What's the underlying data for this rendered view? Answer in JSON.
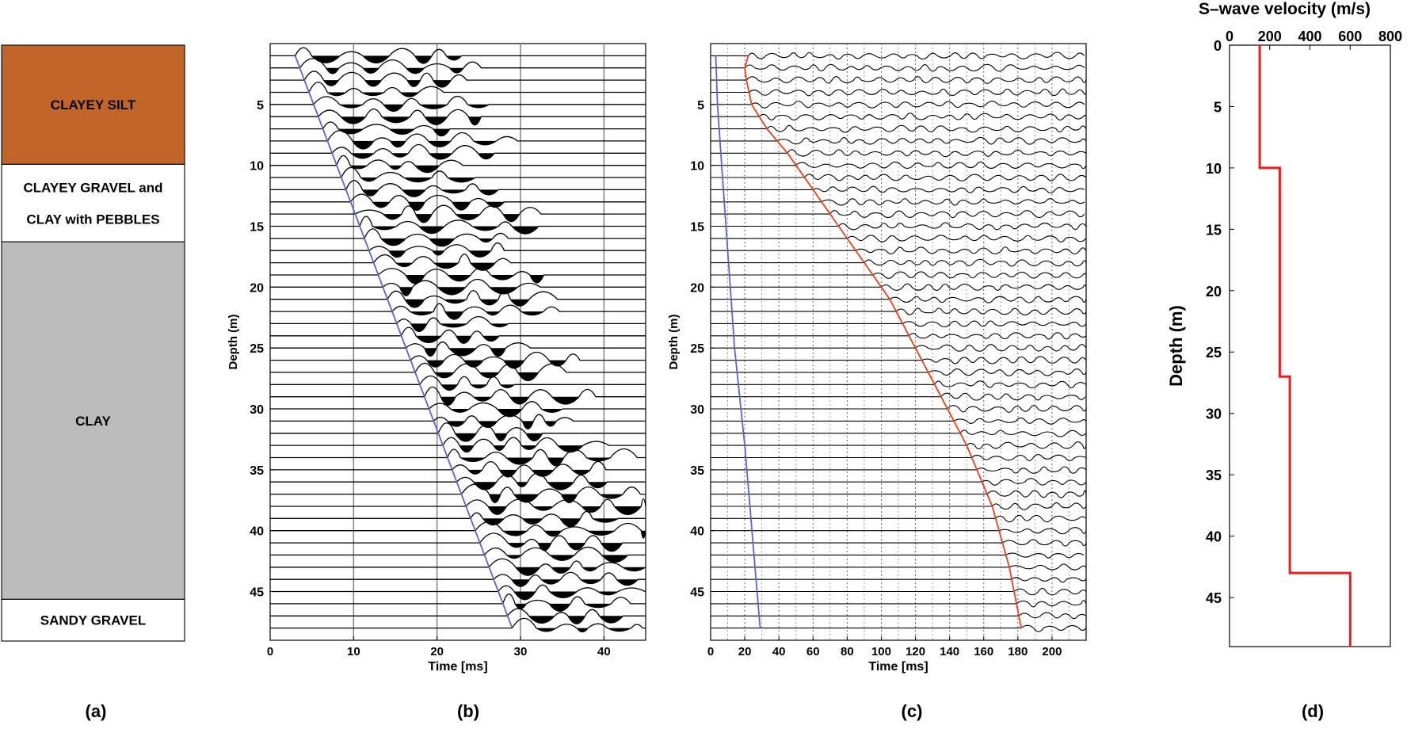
{
  "panel_labels": [
    "(a)",
    "(b)",
    "(c)",
    "(d)"
  ],
  "strata": [
    {
      "lines": [
        "CLAYEY SILT"
      ],
      "top": 0,
      "bottom": 10,
      "color": "#c2652a"
    },
    {
      "lines": [
        "CLAYEY GRAVEL and",
        "CLAY with PEBBLES"
      ],
      "top": 10,
      "bottom": 16.5,
      "color": "#ffffff"
    },
    {
      "lines": [
        "CLAY"
      ],
      "top": 16.5,
      "bottom": 46.5,
      "color": "#bcbcbc"
    },
    {
      "lines": [
        "SANDY GRAVEL"
      ],
      "top": 46.5,
      "bottom": 50,
      "color": "#ffffff"
    }
  ],
  "chart_data": [
    {
      "type": "line",
      "panel": "(b)",
      "title": "",
      "xlabel": "Time [ms]",
      "ylabel": "Depth (m)",
      "xlim": [
        0,
        45
      ],
      "ylim": [
        49,
        0
      ],
      "xticks": [
        0,
        10,
        20,
        30,
        40
      ],
      "yticks": [
        5,
        10,
        15,
        20,
        25,
        30,
        35,
        40,
        45
      ],
      "grid": "vertical",
      "trace_depths": [
        1,
        48
      ],
      "series": [
        {
          "x": [
            3,
            29
          ],
          "y": [
            1,
            48
          ],
          "color": "#5a66c8"
        }
      ]
    },
    {
      "type": "line",
      "panel": "(c)",
      "title": "",
      "xlabel": "Time [ms]",
      "ylabel": "Depth (m)",
      "xlim": [
        0,
        220
      ],
      "ylim": [
        49,
        0
      ],
      "xticks": [
        0,
        20,
        40,
        60,
        80,
        100,
        120,
        140,
        160,
        180,
        200
      ],
      "yticks": [
        5,
        10,
        15,
        20,
        25,
        30,
        35,
        40,
        45
      ],
      "grid": "vertical-dotted",
      "trace_depths": [
        1,
        48
      ],
      "series": [
        {
          "x": [
            3,
            4,
            6,
            8,
            10,
            12,
            14,
            17,
            20,
            23,
            26,
            29
          ],
          "y": [
            1,
            5,
            9,
            13,
            17,
            21,
            25,
            29,
            33,
            38,
            43,
            48
          ],
          "color": "#5a66c8"
        },
        {
          "x": [
            22,
            20,
            21,
            24,
            33,
            45,
            60,
            75,
            90,
            105,
            120,
            135,
            150,
            165,
            175,
            182
          ],
          "y": [
            1,
            2,
            3,
            5,
            7,
            9,
            12,
            15,
            18,
            21,
            25,
            29,
            33,
            38,
            43,
            48
          ],
          "color": "#e8411c"
        }
      ]
    },
    {
      "type": "line",
      "panel": "(d)",
      "title": "S–wave velocity (m/s)",
      "xlabel": "",
      "ylabel": "Depth (m)",
      "xlim": [
        0,
        800
      ],
      "ylim": [
        49,
        0
      ],
      "xticks": [
        0,
        200,
        400,
        600,
        800
      ],
      "yticks": [
        0,
        5,
        10,
        15,
        20,
        25,
        30,
        35,
        40,
        45
      ],
      "series": [
        {
          "x": [
            150,
            150,
            250,
            250,
            300,
            300,
            600,
            600
          ],
          "y": [
            0,
            10,
            10,
            27,
            27,
            43,
            43,
            49
          ],
          "color": "#ee1c1c"
        }
      ]
    }
  ]
}
